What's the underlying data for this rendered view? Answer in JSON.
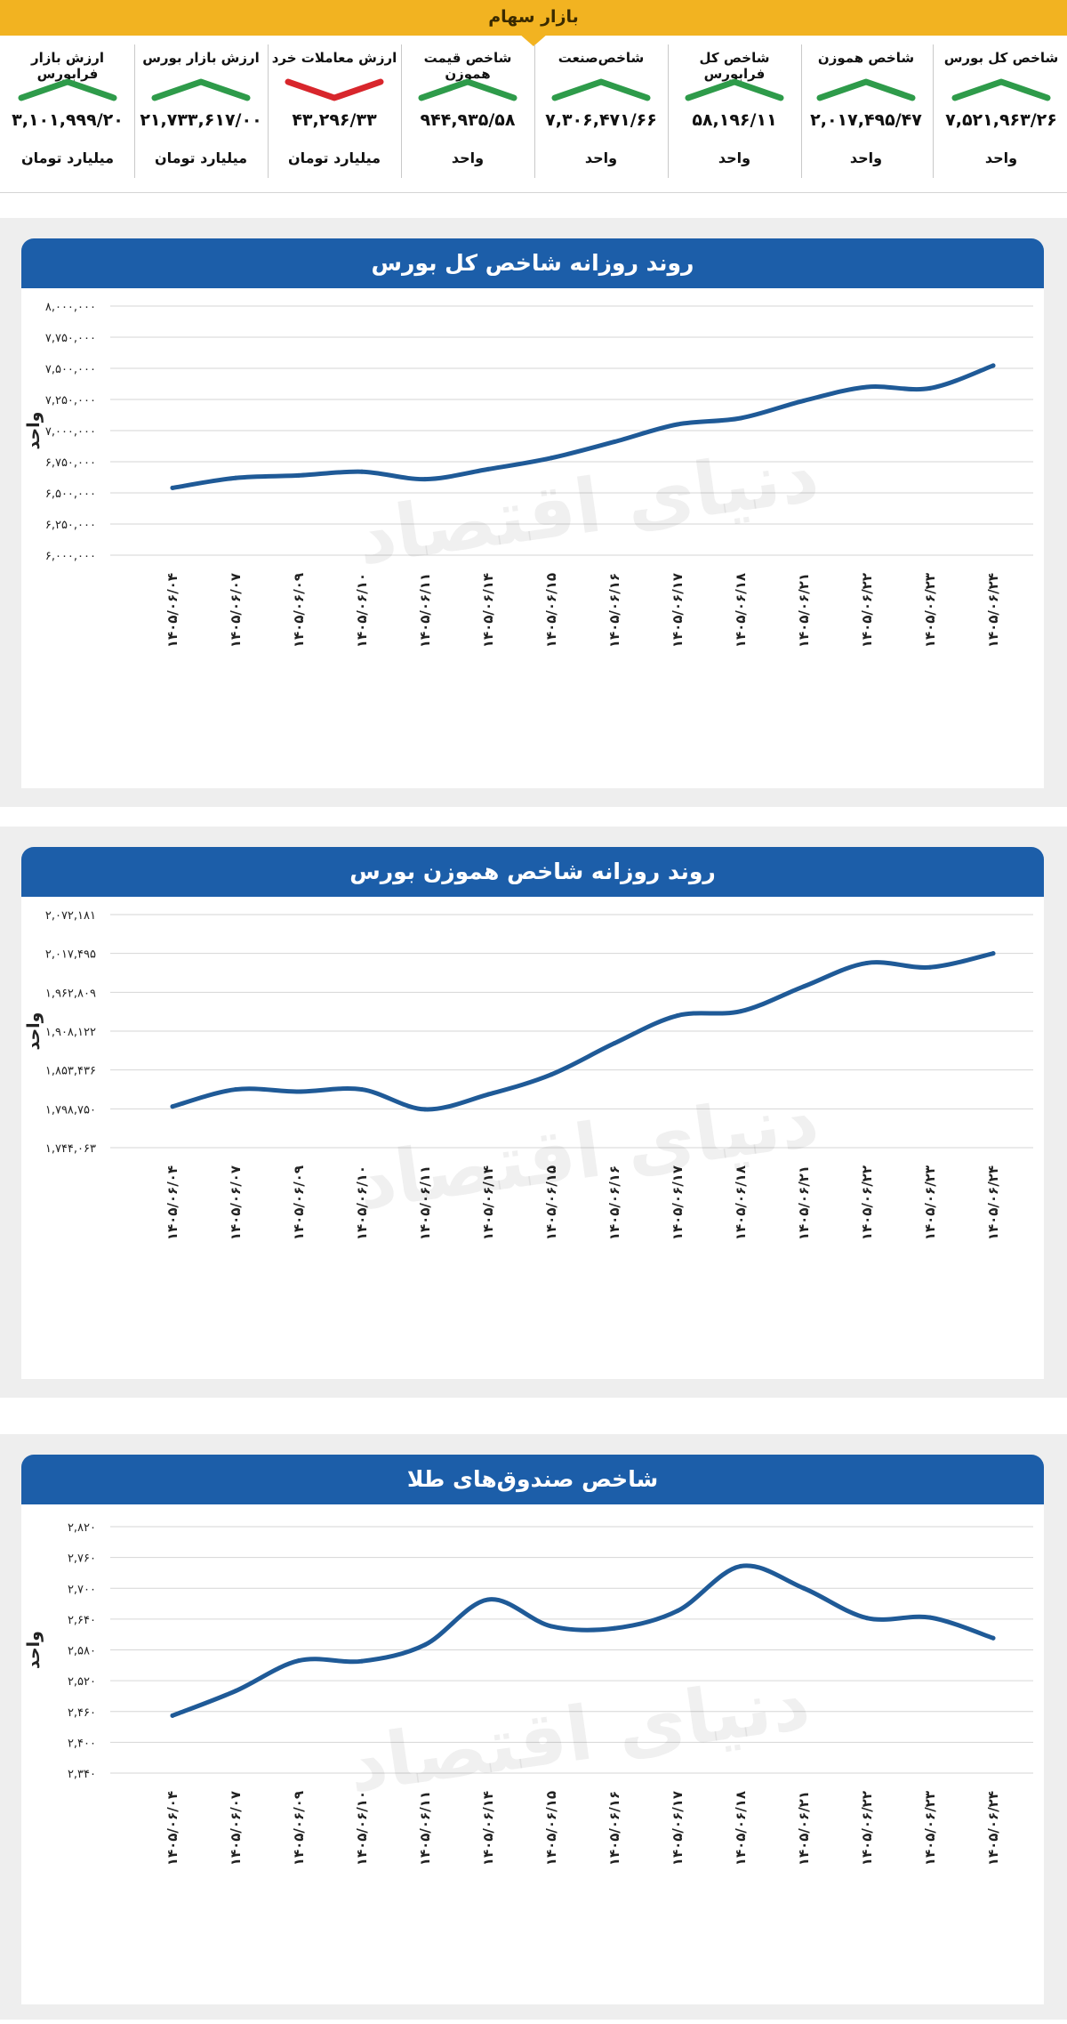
{
  "header": {
    "title": "بازار سهام"
  },
  "stats": [
    {
      "label": "شاخص کل بورس",
      "value": "۷,۵۲۱,۹۶۳/۲۶",
      "unit": "واحد",
      "trend": "up"
    },
    {
      "label": "شاخص هموزن",
      "value": "۲,۰۱۷,۴۹۵/۴۷",
      "unit": "واحد",
      "trend": "up"
    },
    {
      "label": "شاخص کل فرابورس",
      "value": "۵۸,۱۹۶/۱۱",
      "unit": "واحد",
      "trend": "up"
    },
    {
      "label": "شاخص‌صنعت",
      "value": "۷,۳۰۶,۴۷۱/۶۶",
      "unit": "واحد",
      "trend": "up"
    },
    {
      "label": "شاخص قیمت هموزن",
      "value": "۹۴۴,۹۳۵/۵۸",
      "unit": "واحد",
      "trend": "up"
    },
    {
      "label": "ارزش معاملات خرد",
      "value": "۴۳,۲۹۶/۳۳",
      "unit": "میلیارد تومان",
      "trend": "down"
    },
    {
      "label": "ارزش بازار بورس",
      "value": "۲۱,۷۳۳,۶۱۷/۰۰",
      "unit": "میلیارد تومان",
      "trend": "up"
    },
    {
      "label": "ارزش بازار فرابورس",
      "value": "۳,۱۰۱,۹۹۹/۲۰",
      "unit": "میلیارد تومان",
      "trend": "up"
    }
  ],
  "watermark": "دنیای اقتصاد",
  "colors": {
    "header": "#f2b321",
    "panel_header": "#1c5ea9",
    "line": "#1f5a97",
    "up": "#2e9b4a",
    "down": "#d8262c"
  },
  "chart_data": [
    {
      "type": "line",
      "title": "روند روزانه شاخص کل بورس",
      "ylabel": "واحد",
      "categories": [
        "۱۴۰۵/۰۶/۰۴",
        "۱۴۰۵/۰۶/۰۷",
        "۱۴۰۵/۰۶/۰۹",
        "۱۴۰۵/۰۶/۱۰",
        "۱۴۰۵/۰۶/۱۱",
        "۱۴۰۵/۰۶/۱۴",
        "۱۴۰۵/۰۶/۱۵",
        "۱۴۰۵/۰۶/۱۶",
        "۱۴۰۵/۰۶/۱۷",
        "۱۴۰۵/۰۶/۱۸",
        "۱۴۰۵/۰۶/۲۱",
        "۱۴۰۵/۰۶/۲۲",
        "۱۴۰۵/۰۶/۲۳",
        "۱۴۰۵/۰۶/۲۴"
      ],
      "values": [
        6540000,
        6620000,
        6640000,
        6670000,
        6610000,
        6690000,
        6780000,
        6910000,
        7050000,
        7100000,
        7240000,
        7350000,
        7340000,
        7522000
      ],
      "ylim": [
        6000000,
        8000000
      ],
      "yticks_label": [
        "۶,۰۰۰,۰۰۰",
        "۶,۲۵۰,۰۰۰",
        "۶,۵۰۰,۰۰۰",
        "۶,۷۵۰,۰۰۰",
        "۷,۰۰۰,۰۰۰",
        "۷,۲۵۰,۰۰۰",
        "۷,۵۰۰,۰۰۰",
        "۷,۷۵۰,۰۰۰",
        "۸,۰۰۰,۰۰۰"
      ],
      "yticks_value": [
        6000000,
        6250000,
        6500000,
        6750000,
        7000000,
        7250000,
        7500000,
        7750000,
        8000000
      ],
      "grid": true
    },
    {
      "type": "line",
      "title": "روند روزانه شاخص هموزن بورس",
      "ylabel": "واحد",
      "categories": [
        "۱۴۰۵/۰۶/۰۴",
        "۱۴۰۵/۰۶/۰۷",
        "۱۴۰۵/۰۶/۰۹",
        "۱۴۰۵/۰۶/۱۰",
        "۱۴۰۵/۰۶/۱۱",
        "۱۴۰۵/۰۶/۱۴",
        "۱۴۰۵/۰۶/۱۵",
        "۱۴۰۵/۰۶/۱۶",
        "۱۴۰۵/۰۶/۱۷",
        "۱۴۰۵/۰۶/۱۸",
        "۱۴۰۵/۰۶/۲۱",
        "۱۴۰۵/۰۶/۲۲",
        "۱۴۰۵/۰۶/۲۳",
        "۱۴۰۵/۰۶/۲۴"
      ],
      "values": [
        1802000,
        1826000,
        1823000,
        1826000,
        1798000,
        1819000,
        1847000,
        1891000,
        1930000,
        1936000,
        1971000,
        2004000,
        1998000,
        2017495
      ],
      "ylim": [
        1744063,
        2072181
      ],
      "yticks_label": [
        "۱,۷۴۴,۰۶۳",
        "۱,۷۹۸,۷۵۰",
        "۱,۸۵۳,۴۳۶",
        "۱,۹۰۸,۱۲۲",
        "۱,۹۶۲,۸۰۹",
        "۲,۰۱۷,۴۹۵",
        "۲,۰۷۲,۱۸۱"
      ],
      "yticks_value": [
        1744063,
        1798750,
        1853436,
        1908122,
        1962809,
        2017495,
        2072181
      ],
      "grid": true
    },
    {
      "type": "line",
      "title": "شاخص صندوق‌های طلا",
      "ylabel": "واحد",
      "categories": [
        "۱۴۰۵/۰۶/۰۴",
        "۱۴۰۵/۰۶/۰۷",
        "۱۴۰۵/۰۶/۰۹",
        "۱۴۰۵/۰۶/۱۰",
        "۱۴۰۵/۰۶/۱۱",
        "۱۴۰۵/۰۶/۱۴",
        "۱۴۰۵/۰۶/۱۵",
        "۱۴۰۵/۰۶/۱۶",
        "۱۴۰۵/۰۶/۱۷",
        "۱۴۰۵/۰۶/۱۸",
        "۱۴۰۵/۰۶/۲۱",
        "۱۴۰۵/۰۶/۲۲",
        "۱۴۰۵/۰۶/۲۳",
        "۱۴۰۵/۰۶/۲۴"
      ],
      "values": [
        2452,
        2500,
        2559,
        2558,
        2590,
        2678,
        2626,
        2622,
        2656,
        2743,
        2700,
        2642,
        2643,
        2603
      ],
      "ylim": [
        2340,
        2820
      ],
      "yticks_label": [
        "۲,۳۴۰",
        "۲,۴۰۰",
        "۲,۴۶۰",
        "۲,۵۲۰",
        "۲,۵۸۰",
        "۲,۶۴۰",
        "۲,۷۰۰",
        "۲,۷۶۰",
        "۲,۸۲۰"
      ],
      "yticks_value": [
        2340,
        2400,
        2460,
        2520,
        2580,
        2640,
        2700,
        2760,
        2820
      ],
      "grid": true
    }
  ]
}
